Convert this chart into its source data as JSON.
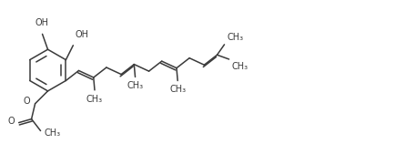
{
  "bg_color": "#ffffff",
  "line_color": "#3a3a3a",
  "line_width": 1.1,
  "font_size": 7.0,
  "fig_width": 4.34,
  "fig_height": 1.69,
  "dpi": 100,
  "xlim": [
    0,
    434
  ],
  "ylim": [
    0,
    169
  ]
}
